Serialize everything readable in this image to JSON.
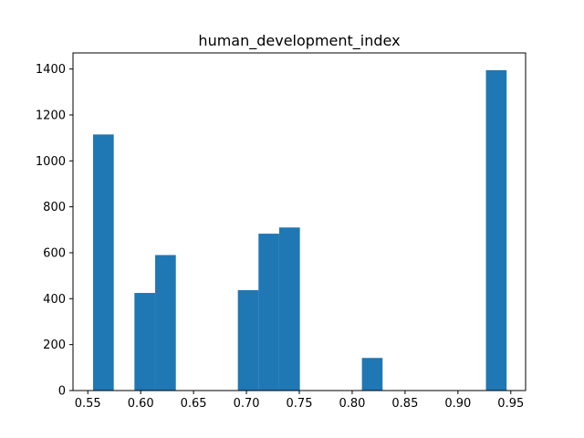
{
  "chart_data": {
    "type": "bar",
    "title": "human_development_index",
    "xlabel": "",
    "ylabel": "",
    "xlim": [
      0.536,
      0.964
    ],
    "ylim": [
      0,
      1470
    ],
    "bar_color": "#1f77b4",
    "grid": false,
    "bin_width": 0.01955,
    "bins": [
      {
        "x0": 0.555,
        "value": 1115
      },
      {
        "x0": 0.5746,
        "value": 0
      },
      {
        "x0": 0.5941,
        "value": 425
      },
      {
        "x0": 0.6137,
        "value": 590
      },
      {
        "x0": 0.6332,
        "value": 0
      },
      {
        "x0": 0.6528,
        "value": 0
      },
      {
        "x0": 0.6723,
        "value": 0
      },
      {
        "x0": 0.6919,
        "value": 437
      },
      {
        "x0": 0.7114,
        "value": 683
      },
      {
        "x0": 0.731,
        "value": 710
      },
      {
        "x0": 0.7505,
        "value": 0
      },
      {
        "x0": 0.7701,
        "value": 0
      },
      {
        "x0": 0.7896,
        "value": 0
      },
      {
        "x0": 0.8092,
        "value": 142
      },
      {
        "x0": 0.8287,
        "value": 0
      },
      {
        "x0": 0.8483,
        "value": 0
      },
      {
        "x0": 0.8678,
        "value": 0
      },
      {
        "x0": 0.8874,
        "value": 0
      },
      {
        "x0": 0.9069,
        "value": 0
      },
      {
        "x0": 0.9265,
        "value": 1395
      }
    ],
    "xticks": [
      {
        "value": 0.55,
        "label": "0.55"
      },
      {
        "value": 0.6,
        "label": "0.60"
      },
      {
        "value": 0.65,
        "label": "0.65"
      },
      {
        "value": 0.7,
        "label": "0.70"
      },
      {
        "value": 0.75,
        "label": "0.75"
      },
      {
        "value": 0.8,
        "label": "0.80"
      },
      {
        "value": 0.85,
        "label": "0.85"
      },
      {
        "value": 0.9,
        "label": "0.90"
      },
      {
        "value": 0.95,
        "label": "0.95"
      }
    ],
    "yticks": [
      {
        "value": 0,
        "label": "0"
      },
      {
        "value": 200,
        "label": "200"
      },
      {
        "value": 400,
        "label": "400"
      },
      {
        "value": 600,
        "label": "600"
      },
      {
        "value": 800,
        "label": "800"
      },
      {
        "value": 1000,
        "label": "1000"
      },
      {
        "value": 1200,
        "label": "1200"
      },
      {
        "value": 1400,
        "label": "1400"
      }
    ]
  }
}
